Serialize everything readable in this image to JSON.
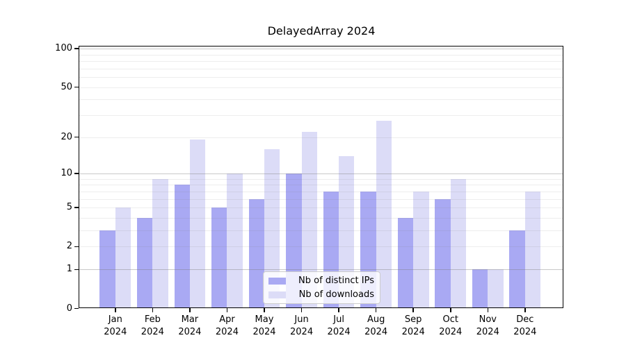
{
  "title": "DelayedArray 2024",
  "colors": {
    "distinct_ips": "#a9a9f3",
    "downloads": "#dcdcf7",
    "axis": "#000000",
    "grid_minor": "rgba(125,125,125,0.14)",
    "grid_major": "rgba(125,125,125,0.42)",
    "legend_border": "#cccccc"
  },
  "legend": {
    "items": [
      {
        "label": "Nb of distinct IPs",
        "series_key": "distinct_ips"
      },
      {
        "label": "Nb of downloads",
        "series_key": "downloads"
      }
    ]
  },
  "chart_data": {
    "type": "bar",
    "title": "DelayedArray 2024",
    "categories": [
      "Jan",
      "Feb",
      "Mar",
      "Apr",
      "May",
      "Jun",
      "Jul",
      "Aug",
      "Sep",
      "Oct",
      "Nov",
      "Dec"
    ],
    "category_year": "2024",
    "series": [
      {
        "name": "Nb of distinct IPs",
        "color_key": "distinct_ips",
        "values": [
          3,
          4,
          8,
          5,
          6,
          10,
          7,
          7,
          4,
          6,
          1,
          3
        ]
      },
      {
        "name": "Nb of downloads",
        "color_key": "downloads",
        "values": [
          5,
          9,
          19,
          10,
          16,
          22,
          14,
          27,
          7,
          9,
          1,
          7
        ]
      }
    ],
    "xlabel": "",
    "ylabel": "",
    "y_scale": "log10(1+x)",
    "y_ticks": [
      0,
      1,
      2,
      5,
      10,
      20,
      50,
      100
    ],
    "grid_minor_values": [
      2,
      3,
      4,
      5,
      6,
      7,
      8,
      9,
      20,
      30,
      40,
      50,
      60,
      70,
      80,
      90
    ],
    "grid_major_values": [
      1,
      10,
      100
    ],
    "ylim": [
      0,
      105
    ],
    "grid": "on",
    "legend_position": "lower center inside plot"
  }
}
